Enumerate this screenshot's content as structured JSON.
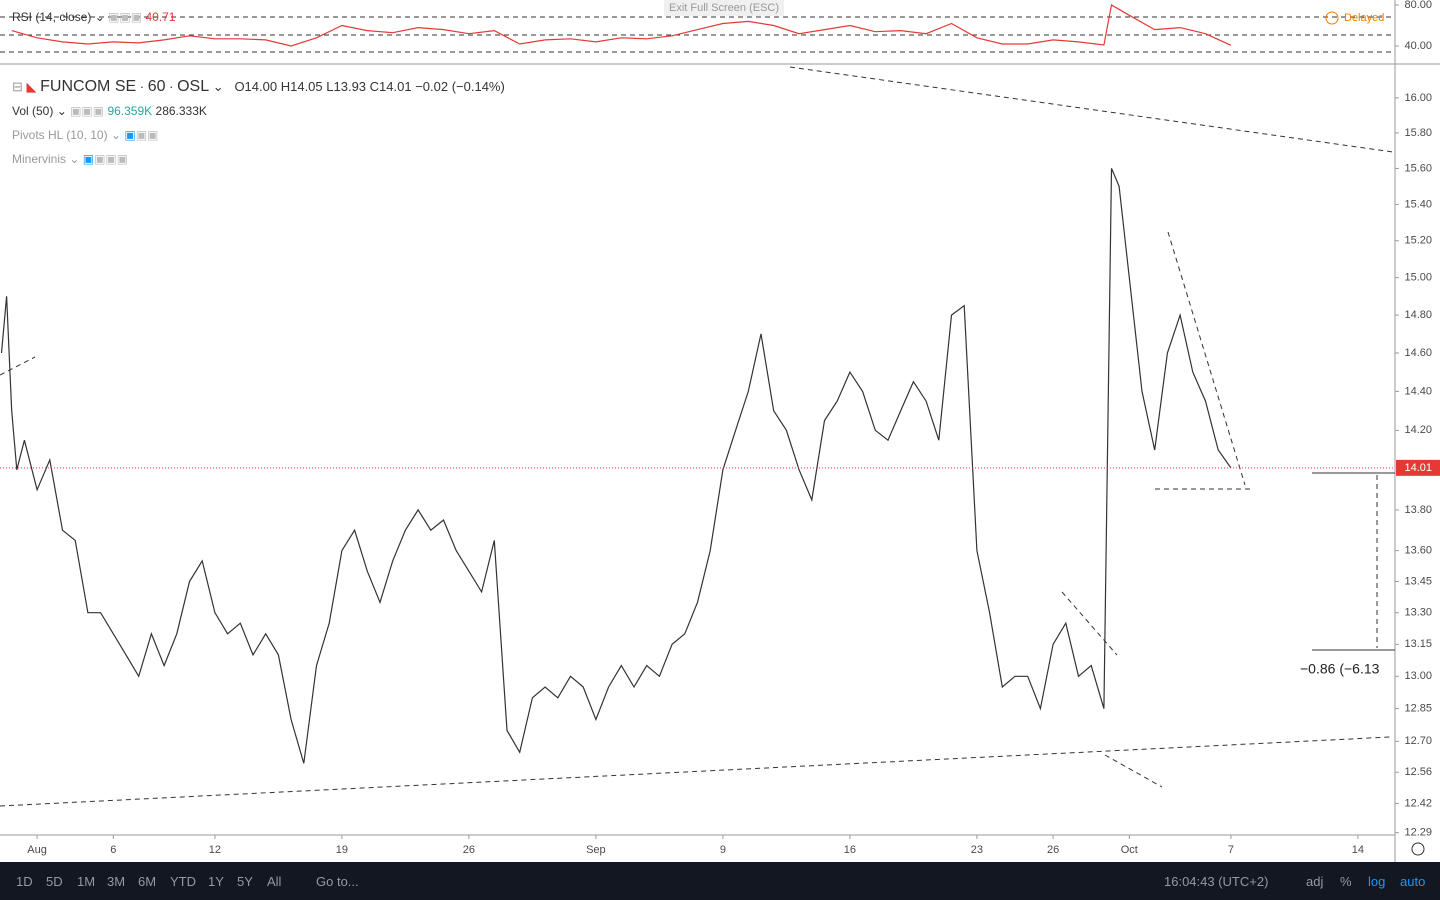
{
  "toolbar_top": {
    "exit": "Exit Full Screen (ESC)",
    "status": "Delayed"
  },
  "header": {
    "rsi_label": "RSI (14, close)",
    "rsi_value": "40.71",
    "symbol": "FUNCOM SE",
    "interval": "60",
    "exchange": "OSL",
    "ohlc": [
      "O14.00",
      "H14.05",
      "L13.93",
      "C14.01"
    ],
    "change": "−0.02 (−0.14%)",
    "volume": {
      "label": "Vol (50)",
      "values": [
        "96.359K",
        "286.333K"
      ]
    },
    "indicators": [
      "Pivots HL (10, 10)",
      "Minervinis"
    ]
  },
  "annotation": "−0.86 (−6.13",
  "chart_data": [
    {
      "type": "line",
      "color": "#333333",
      "log_scale": true,
      "last_price": 14.01,
      "last_price_color": "#e53935",
      "x": [
        -1.4,
        -1.2,
        -1,
        -0.8,
        -0.5,
        0,
        0.5,
        1,
        1.5,
        2,
        2.5,
        3,
        3.5,
        4,
        4.5,
        5,
        5.5,
        6,
        6.5,
        7,
        7.5,
        8,
        8.5,
        9,
        9.5,
        10,
        10.5,
        11,
        11.5,
        12,
        12.5,
        13,
        13.5,
        14,
        14.5,
        15,
        15.5,
        16,
        16.5,
        17,
        17.5,
        18,
        18.5,
        19,
        19.5,
        20,
        20.5,
        21,
        21.5,
        22,
        22.5,
        23,
        23.5,
        24,
        24.5,
        25,
        25.5,
        26,
        26.5,
        27,
        27.5,
        28,
        28.5,
        29,
        29.5,
        30,
        30.5,
        31,
        31.5,
        32,
        32.5,
        33,
        33.5,
        34,
        34.5,
        35,
        35.5,
        36,
        36.5,
        37,
        37.5,
        38,
        38.5,
        39,
        39.5,
        40,
        40.5,
        41,
        41.5,
        42,
        42.3,
        42.6,
        43,
        43.5,
        44,
        44.5,
        45,
        45.5,
        46,
        46.5,
        47
      ],
      "values": [
        14.6,
        14.9,
        14.3,
        14.0,
        14.15,
        13.9,
        14.05,
        13.7,
        13.65,
        13.3,
        13.3,
        13.2,
        13.1,
        13.0,
        13.2,
        13.05,
        13.2,
        13.45,
        13.55,
        13.3,
        13.2,
        13.25,
        13.1,
        13.2,
        13.1,
        12.8,
        12.6,
        13.05,
        13.25,
        13.6,
        13.7,
        13.5,
        13.35,
        13.55,
        13.7,
        13.8,
        13.7,
        13.75,
        13.6,
        13.5,
        13.4,
        13.65,
        12.75,
        12.65,
        12.9,
        12.95,
        12.9,
        13.0,
        12.95,
        12.8,
        12.95,
        13.05,
        12.95,
        13.05,
        13.0,
        13.15,
        13.2,
        13.35,
        13.6,
        14.0,
        14.2,
        14.4,
        14.7,
        14.3,
        14.2,
        14.0,
        13.85,
        14.25,
        14.35,
        14.5,
        14.4,
        14.2,
        14.15,
        14.3,
        14.45,
        14.35,
        14.15,
        14.8,
        14.85,
        13.6,
        13.3,
        12.95,
        13.0,
        13.0,
        12.85,
        13.15,
        13.25,
        13.0,
        13.05,
        12.85,
        15.6,
        15.5,
        15.0,
        14.4,
        14.1,
        14.6,
        14.8,
        14.5,
        14.35,
        14.1,
        14.01
      ],
      "xlim": [
        -1.46,
        53.46
      ],
      "xticks": [
        {
          "value": 0,
          "label": "Aug"
        },
        {
          "value": 3,
          "label": "6"
        },
        {
          "value": 7,
          "label": "12"
        },
        {
          "value": 12,
          "label": "19"
        },
        {
          "value": 17,
          "label": "26"
        },
        {
          "value": 22,
          "label": "Sep"
        },
        {
          "value": 27,
          "label": "9"
        },
        {
          "value": 32,
          "label": "16"
        },
        {
          "value": 37,
          "label": "23"
        },
        {
          "value": 40,
          "label": "26"
        },
        {
          "value": 43,
          "label": "Oct"
        },
        {
          "value": 47,
          "label": "7"
        },
        {
          "value": 52,
          "label": "14"
        }
      ],
      "ylim": [
        12.28,
        16.19
      ],
      "yticks": [
        {
          "value": 16,
          "label": "16.00"
        },
        {
          "value": 15.8,
          "label": "15.80"
        },
        {
          "value": 15.6,
          "label": "15.60"
        },
        {
          "value": 15.4,
          "label": "15.40"
        },
        {
          "value": 15.2,
          "label": "15.20"
        },
        {
          "value": 15,
          "label": "15.00"
        },
        {
          "value": 14.8,
          "label": "14.80"
        },
        {
          "value": 14.6,
          "label": "14.60"
        },
        {
          "value": 14.4,
          "label": "14.40"
        },
        {
          "value": 14.2,
          "label": "14.20"
        },
        {
          "value": 13.8,
          "label": "13.80"
        },
        {
          "value": 13.6,
          "label": "13.60"
        },
        {
          "value": 13.45,
          "label": "13.45"
        },
        {
          "value": 13.3,
          "label": "13.30"
        },
        {
          "value": 13.15,
          "label": "13.15"
        },
        {
          "value": 13,
          "label": "13.00"
        },
        {
          "value": 12.85,
          "label": "12.85"
        },
        {
          "value": 12.7,
          "label": "12.70"
        },
        {
          "value": 12.56,
          "label": "12.56"
        },
        {
          "value": 12.42,
          "label": "12.42"
        },
        {
          "value": 12.29,
          "label": "12.29"
        }
      ]
    },
    {
      "type": "line",
      "color": "#e53935",
      "x": [
        -1,
        0,
        1,
        2,
        3,
        4,
        5,
        6,
        7,
        8,
        9,
        10,
        11,
        12,
        13,
        14,
        15,
        16,
        17,
        18,
        19,
        20,
        21,
        22,
        23,
        24,
        25,
        26,
        27,
        28,
        29,
        30,
        31,
        32,
        33,
        34,
        35,
        36,
        37,
        38,
        39,
        40,
        41,
        42,
        42.3,
        43,
        44,
        45,
        46,
        47
      ],
      "values": [
        55,
        48,
        44,
        42,
        44,
        43,
        46,
        50,
        47,
        47,
        46,
        40,
        48,
        60,
        55,
        53,
        58,
        56,
        52,
        55,
        42,
        46,
        47,
        44,
        48,
        47,
        50,
        56,
        62,
        64,
        60,
        52,
        56,
        60,
        54,
        55,
        52,
        62,
        48,
        42,
        42,
        46,
        44,
        41,
        80,
        70,
        56,
        58,
        52,
        40.71
      ],
      "ylim": [
        24.4,
        84.9
      ],
      "yticks": [
        {
          "value": 80,
          "label": "80.00"
        },
        {
          "value": 40,
          "label": "40.00"
        }
      ]
    }
  ],
  "bottom_bar": {
    "ranges": [
      "1D",
      "5D",
      "1M",
      "3M",
      "6M",
      "YTD",
      "1Y",
      "5Y",
      "All"
    ],
    "goto": "Go to...",
    "time": "16:04:43 (UTC+2)",
    "options": [
      "adj",
      "%",
      "log",
      "auto"
    ]
  }
}
